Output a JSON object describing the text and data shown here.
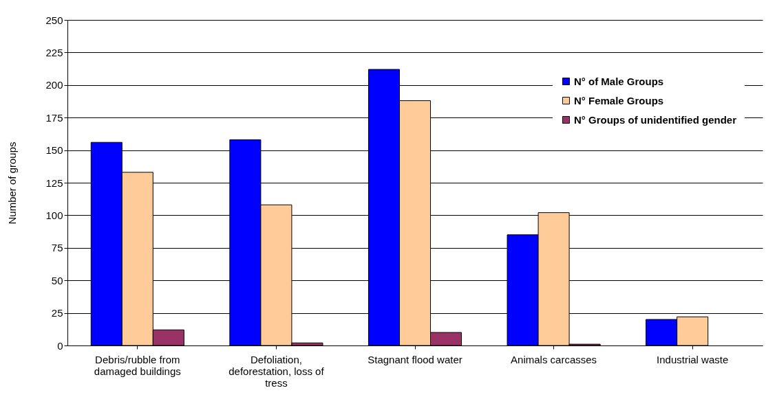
{
  "chart_data": {
    "type": "bar",
    "ylabel": "Number of groups",
    "categories": [
      "Debris/rubble from damaged buildings",
      "Defoliation, deforestation, loss of tress",
      "Stagnant flood water",
      "Animals carcasses",
      "Industrial waste"
    ],
    "series": [
      {
        "name": "N° of Male Groups",
        "color": "#0000ff",
        "values": [
          156,
          158,
          212,
          85,
          20
        ]
      },
      {
        "name": "N° Female Groups",
        "color": "#ffcc99",
        "values": [
          133,
          108,
          188,
          102,
          22
        ]
      },
      {
        "name": "N° Groups of unidentified gender",
        "color": "#993366",
        "values": [
          12,
          2,
          10,
          1,
          null
        ]
      }
    ],
    "ylim": [
      0,
      250
    ],
    "yticks": [
      0,
      25,
      50,
      75,
      100,
      125,
      150,
      175,
      200,
      225,
      250
    ],
    "grid": "y",
    "legend": "top right"
  }
}
